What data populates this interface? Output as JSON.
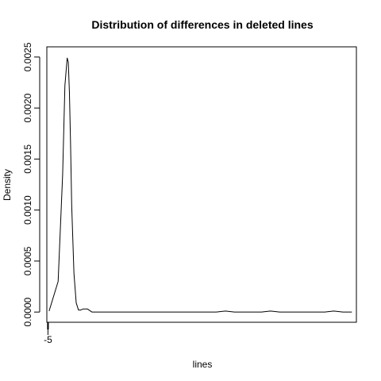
{
  "chart_data": {
    "type": "line",
    "title": "Distribution of differences in deleted lines",
    "xlabel": "lines",
    "ylabel": "Density",
    "xlim": [
      -10,
      1360
    ],
    "ylim": [
      -0.0001,
      0.0026
    ],
    "y_ticks": [
      0.0,
      0.0005,
      0.001,
      0.0015,
      0.002,
      0.0025
    ],
    "y_tick_labels": [
      "0.0000",
      "0.0005",
      "0.0010",
      "0.0015",
      "0.0020",
      "0.0025"
    ],
    "x_ticks": [
      -5
    ],
    "x_tick_labels": [
      "-5"
    ],
    "grid": false,
    "legend": "none",
    "line_color": "#000000",
    "rug": [
      -6,
      -5,
      -4
    ],
    "series": [
      {
        "x": [
          0,
          40,
          60,
          70,
          80,
          85,
          90,
          95,
          100,
          110,
          120,
          130,
          140,
          150,
          170,
          190,
          210,
          230,
          260,
          300,
          340,
          380,
          420,
          460,
          500,
          540,
          580,
          620,
          660,
          700,
          740,
          780,
          820,
          860,
          900,
          940,
          980,
          1020,
          1060,
          1100,
          1140,
          1180,
          1220,
          1260,
          1300,
          1340
        ],
        "y": [
          1e-05,
          0.0003,
          0.00135,
          0.00222,
          0.00249,
          0.00245,
          0.00215,
          0.00165,
          0.00105,
          0.00038,
          9e-05,
          2e-05,
          2e-05,
          3e-05,
          3e-05,
          0.0,
          0.0,
          0.0,
          0.0,
          0.0,
          0.0,
          0.0,
          0.0,
          0.0,
          0.0,
          0.0,
          0.0,
          0.0,
          0.0,
          0.0,
          0.0,
          1e-05,
          0.0,
          0.0,
          0.0,
          0.0,
          1e-05,
          0.0,
          0.0,
          0.0,
          0.0,
          0.0,
          0.0,
          1e-05,
          0.0,
          0.0
        ]
      }
    ]
  }
}
